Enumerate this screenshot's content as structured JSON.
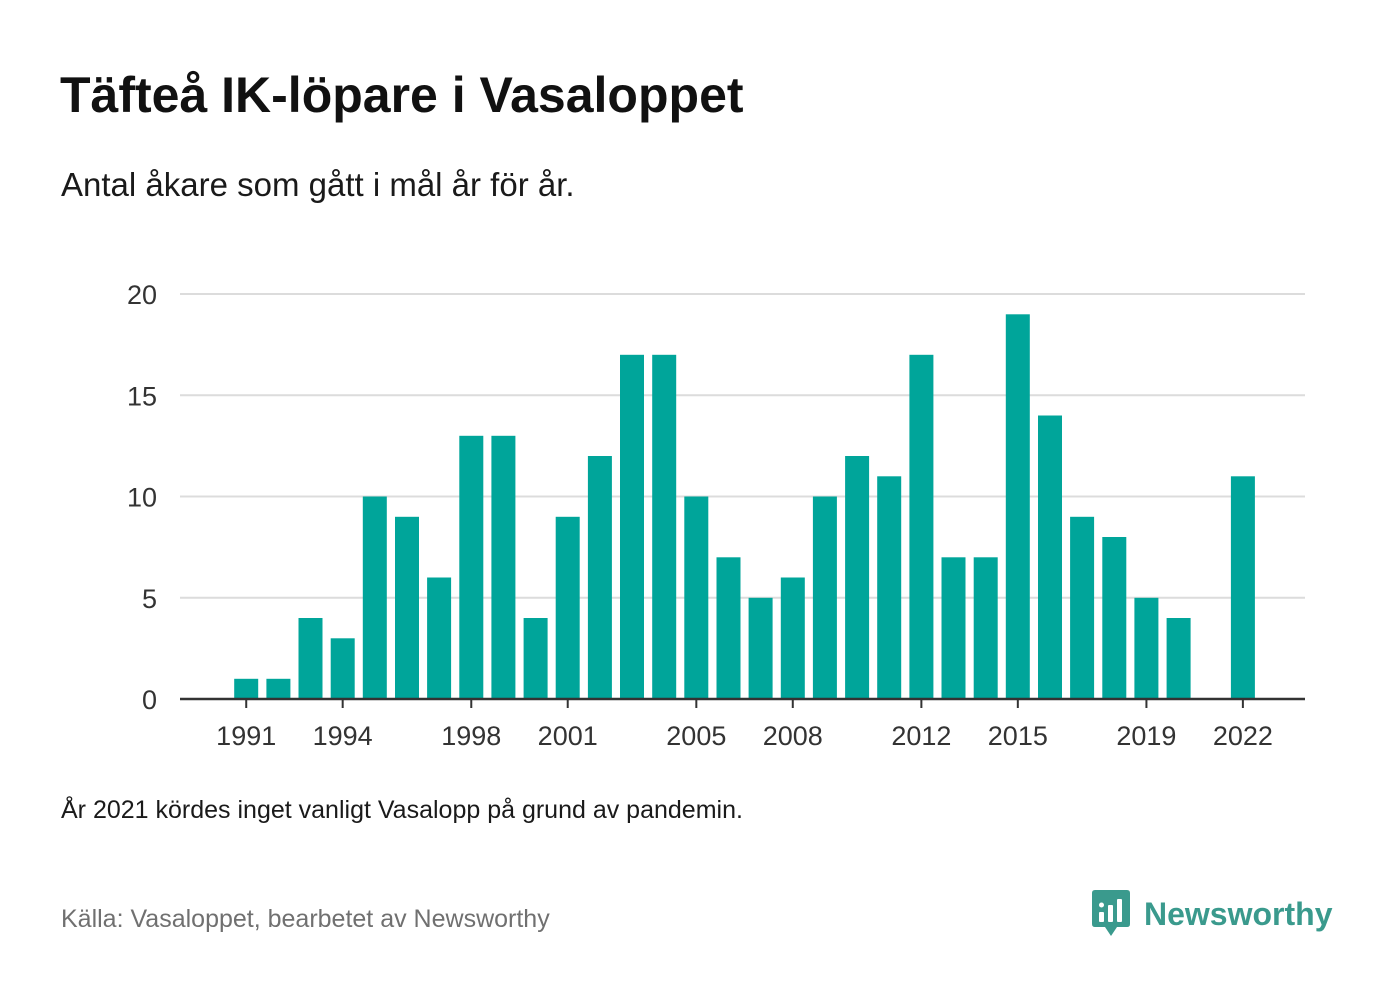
{
  "title": "Täfteå IK-löpare i Vasaloppet",
  "subtitle": "Antal åkare som gått i mål år för år.",
  "note": "År 2021 kördes inget vanligt Vasalopp på grund av pandemin.",
  "source": "Källa: Vasaloppet, bearbetet av Newsworthy",
  "brand": {
    "name": "Newsworthy",
    "icon": "newsworthy-logo-icon",
    "color": "#3a9a8d"
  },
  "colors": {
    "bar": "#00a59a",
    "grid": "#dcdcdc",
    "axis": "#333333"
  },
  "chart_data": {
    "type": "bar",
    "title": "Täfteå IK-löpare i Vasaloppet",
    "subtitle": "Antal åkare som gått i mål år för år.",
    "xlabel": "",
    "ylabel": "",
    "categories": [
      1990,
      1991,
      1992,
      1993,
      1994,
      1995,
      1996,
      1997,
      1998,
      1999,
      2000,
      2001,
      2002,
      2003,
      2004,
      2005,
      2006,
      2007,
      2008,
      2009,
      2010,
      2011,
      2012,
      2013,
      2014,
      2015,
      2016,
      2017,
      2018,
      2019,
      2020,
      2021,
      2022
    ],
    "values": [
      0,
      1,
      1,
      4,
      3,
      10,
      9,
      6,
      13,
      13,
      4,
      9,
      12,
      17,
      17,
      10,
      7,
      5,
      6,
      10,
      12,
      11,
      17,
      7,
      7,
      19,
      14,
      9,
      8,
      5,
      4,
      null,
      11
    ],
    "xticks": [
      1991,
      1994,
      1998,
      2001,
      2005,
      2008,
      2012,
      2015,
      2019,
      2022
    ],
    "yticks": [
      0,
      5,
      10,
      15,
      20
    ],
    "ylim": [
      0,
      20
    ],
    "grid": true,
    "legend": "none"
  }
}
